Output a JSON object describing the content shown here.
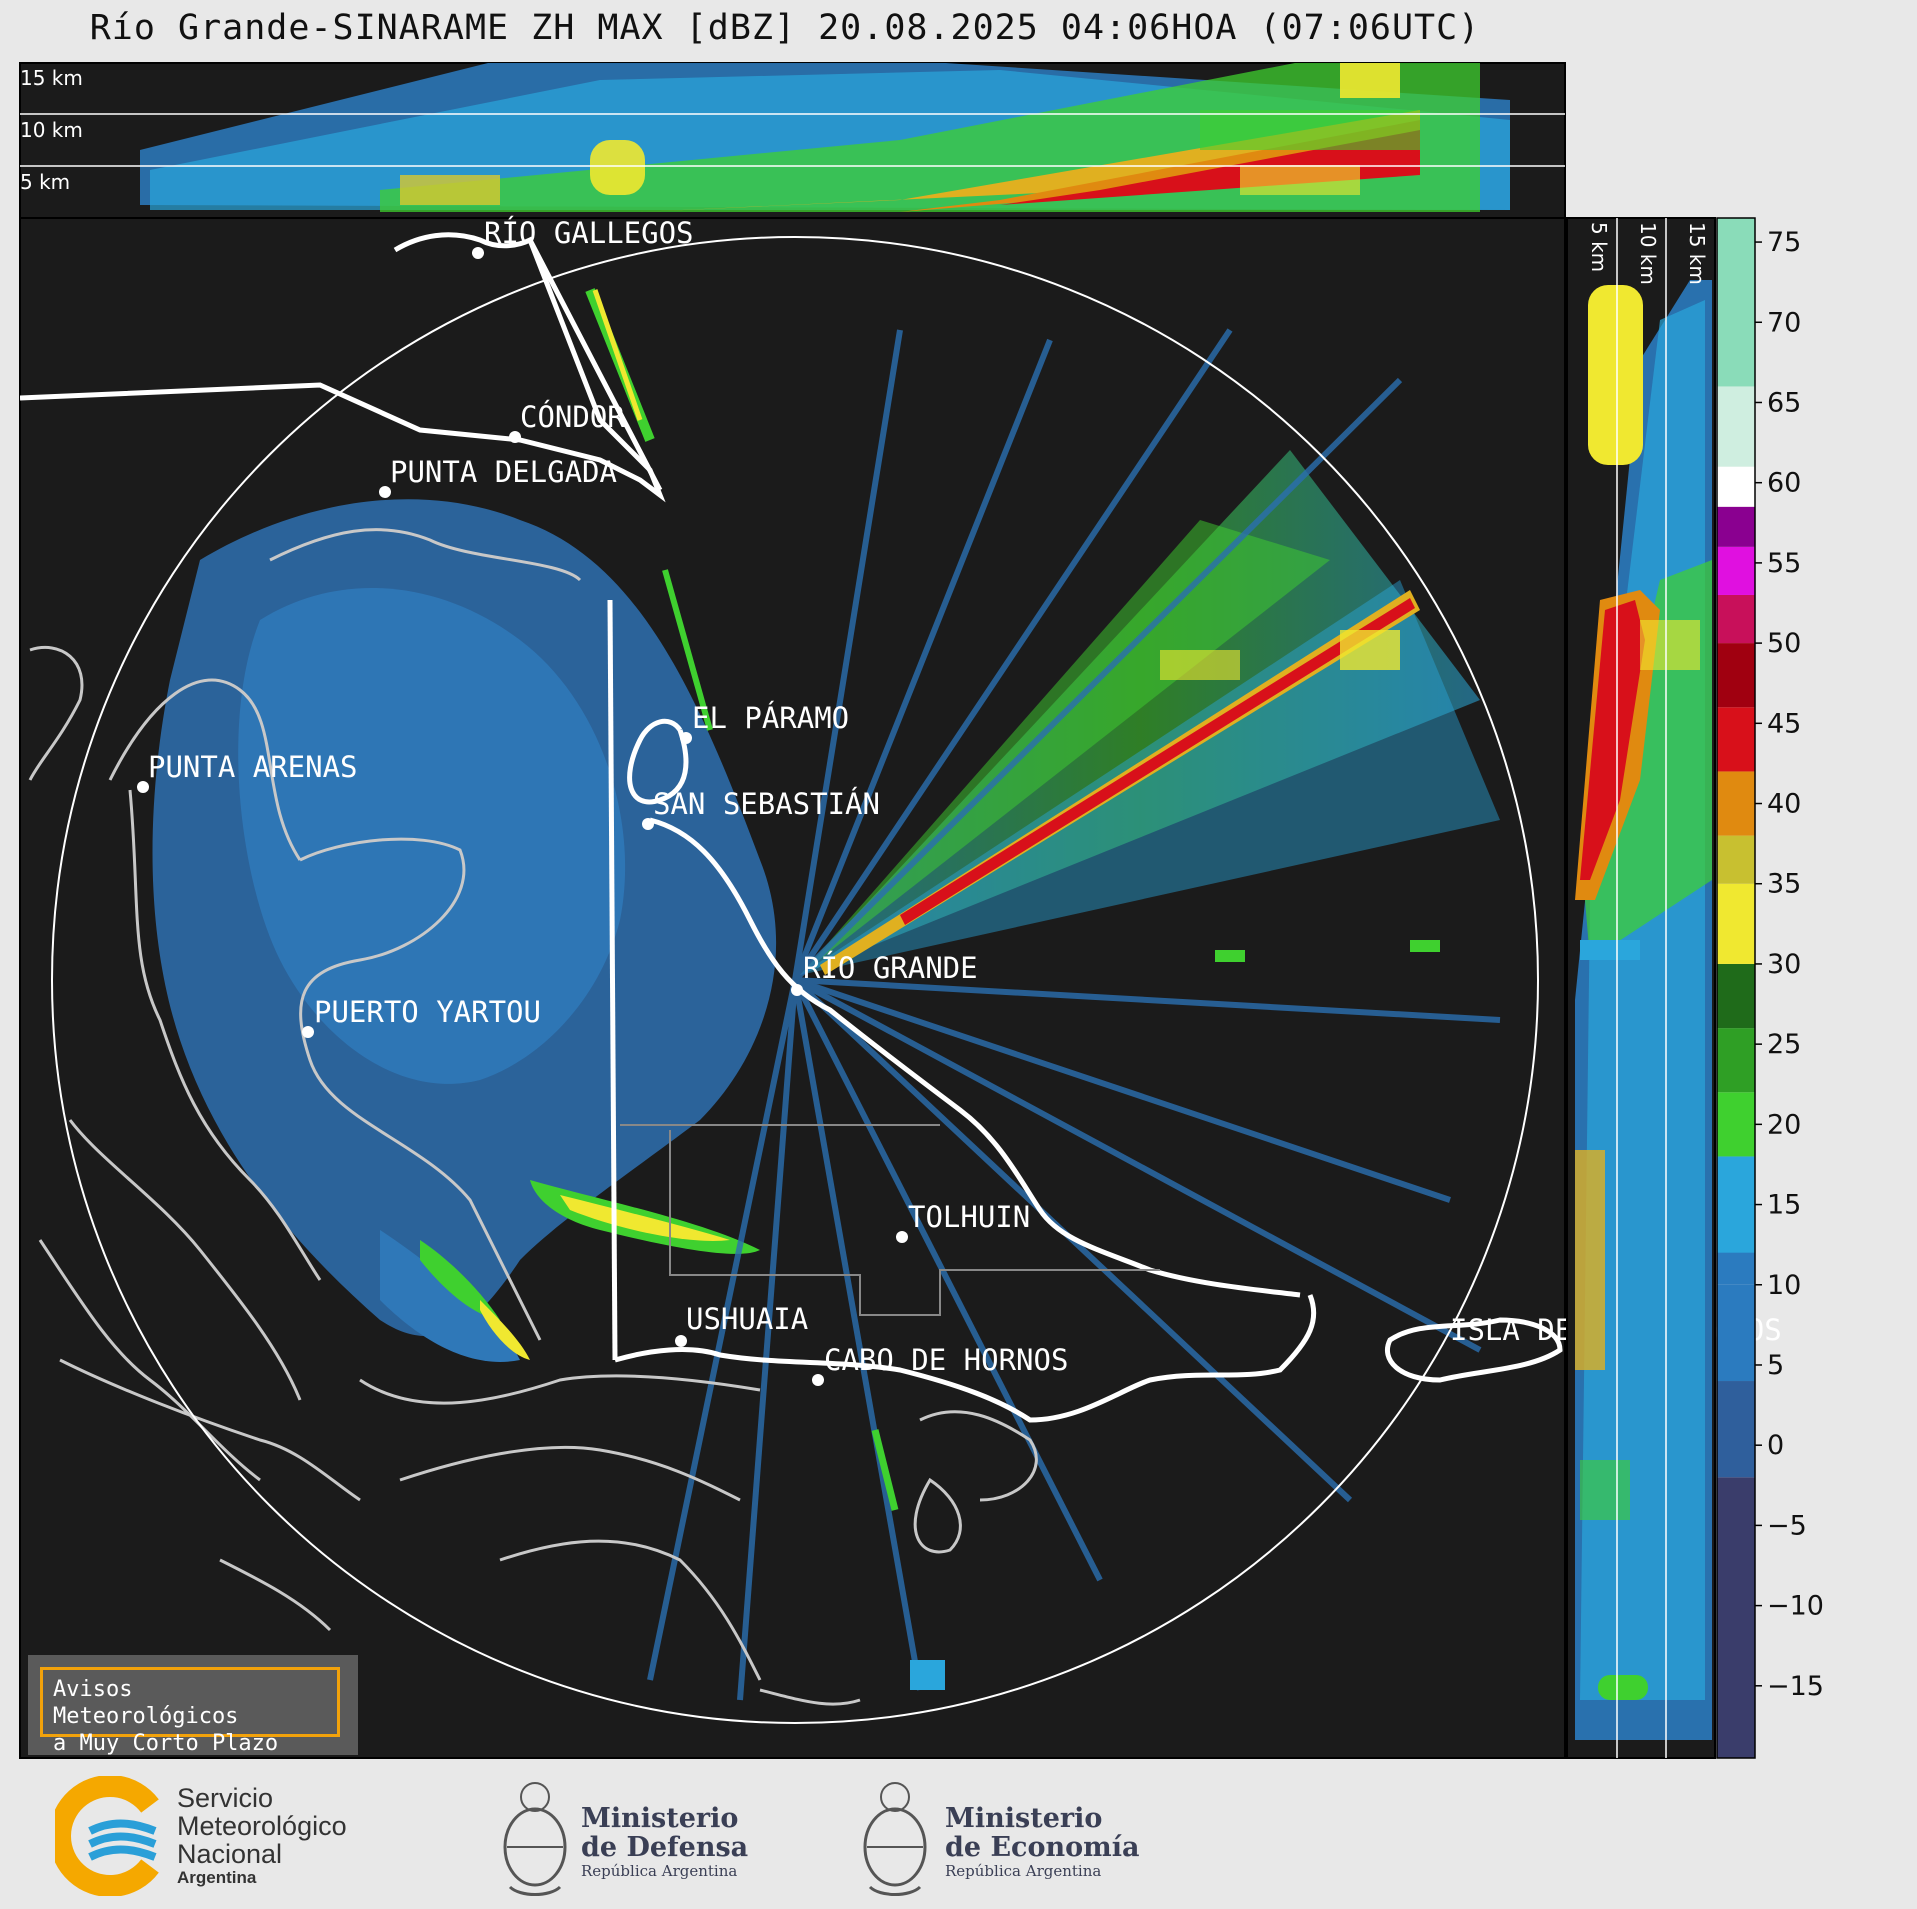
{
  "header": {
    "title": "Río Grande-SINARAME ZH MAX [dBZ] 20.08.2025 04:06HOA (07:06UTC)"
  },
  "top_panel": {
    "height_labels": [
      "15 km",
      "10 km",
      "5 km"
    ]
  },
  "side_panel": {
    "height_labels": [
      "5 km",
      "10 km",
      "15 km"
    ]
  },
  "map": {
    "places": [
      {
        "name": "RÍO GALLEGOS"
      },
      {
        "name": "CÓNDOR"
      },
      {
        "name": "PUNTA DELGADA"
      },
      {
        "name": "EL PÁRAMO"
      },
      {
        "name": "PUNTA ARENAS"
      },
      {
        "name": "SAN SEBASTIÁN"
      },
      {
        "name": "RÍO GRANDE"
      },
      {
        "name": "PUERTO YARTOU"
      },
      {
        "name": "TOLHUIN"
      },
      {
        "name": "USHUAIA"
      },
      {
        "name": "CABO DE HORNOS"
      },
      {
        "name": "ISLA DE LOS ESTADOS"
      }
    ]
  },
  "colorbar": {
    "unit": "dBZ",
    "ticks": [
      "75",
      "70",
      "65",
      "60",
      "55",
      "50",
      "45",
      "40",
      "35",
      "30",
      "25",
      "20",
      "15",
      "10",
      "5",
      "0",
      "−5",
      "−10",
      "−15"
    ],
    "colors": {
      "low": "#3a3d6b",
      "blue": "#2b7bbf",
      "lightblue": "#2aa6dc",
      "green": "#3fd02f",
      "darkgreen": "#1f6b1a",
      "yellow": "#f0e830",
      "orange": "#e08a10",
      "red": "#d8101a",
      "magenta": "#e010e0",
      "purple": "#8a0090",
      "white": "#ffffff",
      "mint": "#8adcb9"
    }
  },
  "warning_box": {
    "line1": "Avisos Meteorológicos",
    "line2": "a Muy Corto Plazo"
  },
  "footer": {
    "smn": {
      "line1": "Servicio",
      "line2": "Meteorológico",
      "line3": "Nacional",
      "line4": "Argentina"
    },
    "defensa": {
      "line1": "Ministerio",
      "line2": "de Defensa",
      "line3": "República Argentina"
    },
    "economia": {
      "line1": "Ministerio",
      "line2": "de Economía",
      "line3": "República Argentina"
    }
  }
}
